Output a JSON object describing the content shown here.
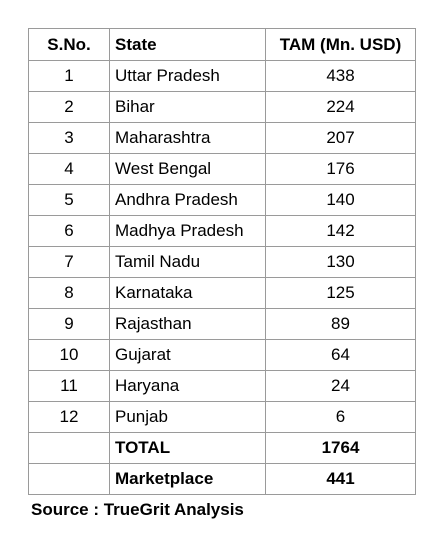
{
  "table": {
    "headers": {
      "sno": "S.No.",
      "state": "State",
      "tam": "TAM (Mn. USD)"
    },
    "rows": [
      {
        "sno": "1",
        "state": "Uttar Pradesh",
        "tam": "438"
      },
      {
        "sno": "2",
        "state": "Bihar",
        "tam": "224"
      },
      {
        "sno": "3",
        "state": "Maharashtra",
        "tam": "207"
      },
      {
        "sno": "4",
        "state": "West Bengal",
        "tam": "176"
      },
      {
        "sno": "5",
        "state": "Andhra Pradesh",
        "tam": "140"
      },
      {
        "sno": "6",
        "state": "Madhya Pradesh",
        "tam": "142"
      },
      {
        "sno": "7",
        "state": "Tamil Nadu",
        "tam": "130"
      },
      {
        "sno": "8",
        "state": "Karnataka",
        "tam": "125"
      },
      {
        "sno": "9",
        "state": "Rajasthan",
        "tam": "89"
      },
      {
        "sno": "10",
        "state": "Gujarat",
        "tam": "64"
      },
      {
        "sno": "11",
        "state": "Haryana",
        "tam": "24"
      },
      {
        "sno": "12",
        "state": "Punjab",
        "tam": "6"
      }
    ],
    "summary": [
      {
        "label": "TOTAL",
        "value": "1764"
      },
      {
        "label": "Marketplace",
        "value": "441"
      }
    ]
  },
  "source": "Source : TrueGrit Analysis"
}
